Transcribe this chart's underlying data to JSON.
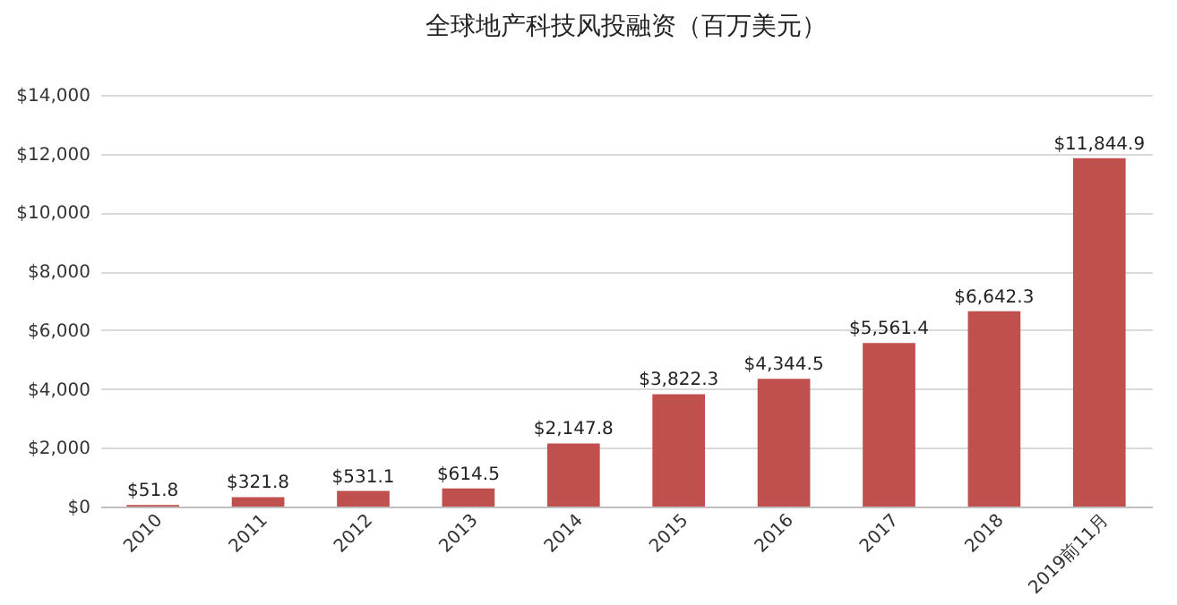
{
  "chart_data": {
    "type": "bar",
    "title": "全球地产科技风投融资（百万美元）",
    "categories": [
      "2010",
      "2011",
      "2012",
      "2013",
      "2014",
      "2015",
      "2016",
      "2017",
      "2018",
      "2019前11月"
    ],
    "values": [
      51.8,
      321.8,
      531.1,
      614.5,
      2147.8,
      3822.3,
      4344.5,
      5561.4,
      6642.3,
      11844.9
    ],
    "value_labels": [
      "$51.8",
      "$321.8",
      "$531.1",
      "$614.5",
      "$2,147.8",
      "$3,822.3",
      "$4,344.5",
      "$5,561.4",
      "$6,642.3",
      "$11,844.9"
    ],
    "color": "#c0504d",
    "ylim": [
      0,
      14000
    ],
    "yticks": [
      {
        "value": 0,
        "label": "$0"
      },
      {
        "value": 2000,
        "label": "$2,000"
      },
      {
        "value": 4000,
        "label": "$4,000"
      },
      {
        "value": 6000,
        "label": "$6,000"
      },
      {
        "value": 8000,
        "label": "$8,000"
      },
      {
        "value": 10000,
        "label": "$10,000"
      },
      {
        "value": 12000,
        "label": "$12,000"
      },
      {
        "value": 14000,
        "label": "$14,000"
      }
    ],
    "grid": "y"
  }
}
